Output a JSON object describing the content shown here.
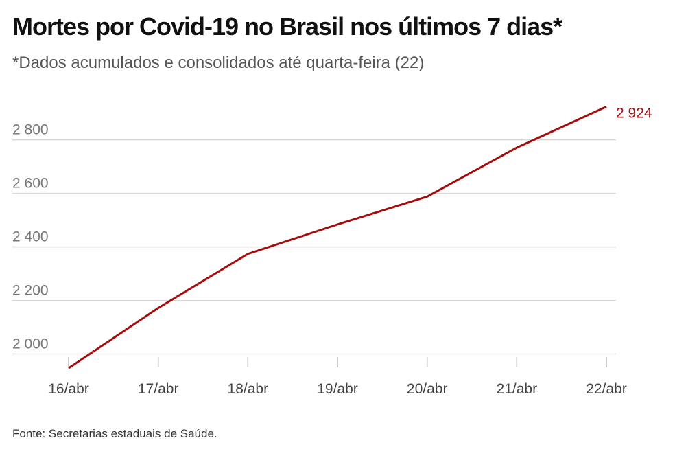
{
  "header": {
    "title": "Mortes por Covid-19 no Brasil nos últimos 7 dias*",
    "subtitle": "*Dados acumulados e consolidados até quarta-feira (22)"
  },
  "footer": {
    "source": "Fonte: Secretarias estaduais de Saúde."
  },
  "colors": {
    "line": "#a50d0d",
    "grid": "#d9d9d9",
    "axis_text": "#777777"
  },
  "chart_data": {
    "type": "line",
    "title": "Mortes por Covid-19 no Brasil nos últimos 7 dias*",
    "subtitle": "*Dados acumulados e consolidados até quarta-feira (22)",
    "categories": [
      "16/abr",
      "17/abr",
      "18/abr",
      "19/abr",
      "20/abr",
      "21/abr",
      "22/abr"
    ],
    "series": [
      {
        "values": [
          1947,
          2172,
          2374,
          2484,
          2588,
          2771,
          2924
        ]
      }
    ],
    "ylim": [
      1950,
      2925
    ],
    "yticks": [
      2000,
      2200,
      2400,
      2600,
      2800
    ],
    "ytick_labels": [
      "2 000",
      "2 200",
      "2 400",
      "2 600",
      "2 800"
    ],
    "end_label": "2 924",
    "grid": true,
    "legend": "none"
  }
}
